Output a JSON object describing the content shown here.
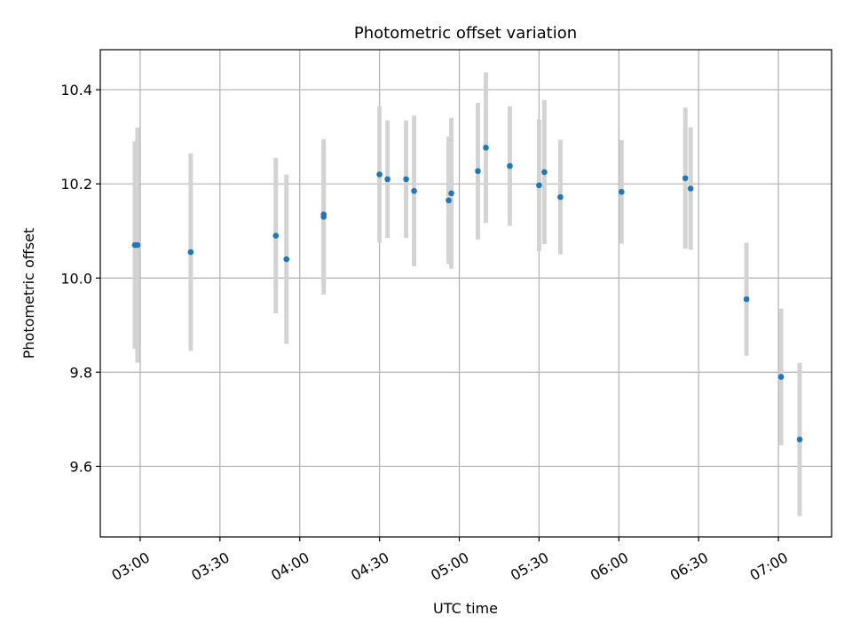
{
  "chart_data": {
    "type": "scatter",
    "title": "Photometric offset variation",
    "xlabel": "UTC time",
    "ylabel": "Photometric offset",
    "xlim": [
      "02:45",
      "07:20"
    ],
    "ylim": [
      9.45,
      10.485
    ],
    "x_ticks": [
      "03:00",
      "03:30",
      "04:00",
      "04:30",
      "05:00",
      "05:30",
      "06:00",
      "06:30",
      "07:00"
    ],
    "y_ticks": [
      9.6,
      9.8,
      10.0,
      10.2,
      10.4
    ],
    "y_tick_labels": [
      "9.6",
      "9.8",
      "10.0",
      "10.2",
      "10.4"
    ],
    "grid": true,
    "colors": {
      "marker": "#1f77b4",
      "errorbar": "#d3d3d3"
    },
    "points": [
      {
        "x": "02:58",
        "y": 10.07,
        "err": 0.22
      },
      {
        "x": "02:59",
        "y": 10.07,
        "err": 0.25
      },
      {
        "x": "03:19",
        "y": 10.055,
        "err": 0.21
      },
      {
        "x": "03:51",
        "y": 10.09,
        "err": 0.165
      },
      {
        "x": "03:55",
        "y": 10.04,
        "err": 0.18
      },
      {
        "x": "04:09",
        "y": 10.135,
        "err": 0.15
      },
      {
        "x": "04:09",
        "y": 10.13,
        "err": 0.165
      },
      {
        "x": "04:30",
        "y": 10.22,
        "err": 0.145
      },
      {
        "x": "04:33",
        "y": 10.21,
        "err": 0.125
      },
      {
        "x": "04:40",
        "y": 10.21,
        "err": 0.125
      },
      {
        "x": "04:43",
        "y": 10.185,
        "err": 0.16
      },
      {
        "x": "04:56",
        "y": 10.165,
        "err": 0.135
      },
      {
        "x": "04:57",
        "y": 10.18,
        "err": 0.16
      },
      {
        "x": "05:07",
        "y": 10.227,
        "err": 0.145
      },
      {
        "x": "05:10",
        "y": 10.277,
        "err": 0.16
      },
      {
        "x": "05:19",
        "y": 10.238,
        "err": 0.127
      },
      {
        "x": "05:30",
        "y": 10.197,
        "err": 0.14
      },
      {
        "x": "05:32",
        "y": 10.225,
        "err": 0.153
      },
      {
        "x": "05:38",
        "y": 10.172,
        "err": 0.122
      },
      {
        "x": "06:01",
        "y": 10.183,
        "err": 0.11
      },
      {
        "x": "06:25",
        "y": 10.212,
        "err": 0.15
      },
      {
        "x": "06:27",
        "y": 10.19,
        "err": 0.13
      },
      {
        "x": "06:48",
        "y": 9.955,
        "err": 0.12
      },
      {
        "x": "07:01",
        "y": 9.79,
        "err": 0.145
      },
      {
        "x": "07:08",
        "y": 9.657,
        "err": 0.163
      }
    ]
  }
}
